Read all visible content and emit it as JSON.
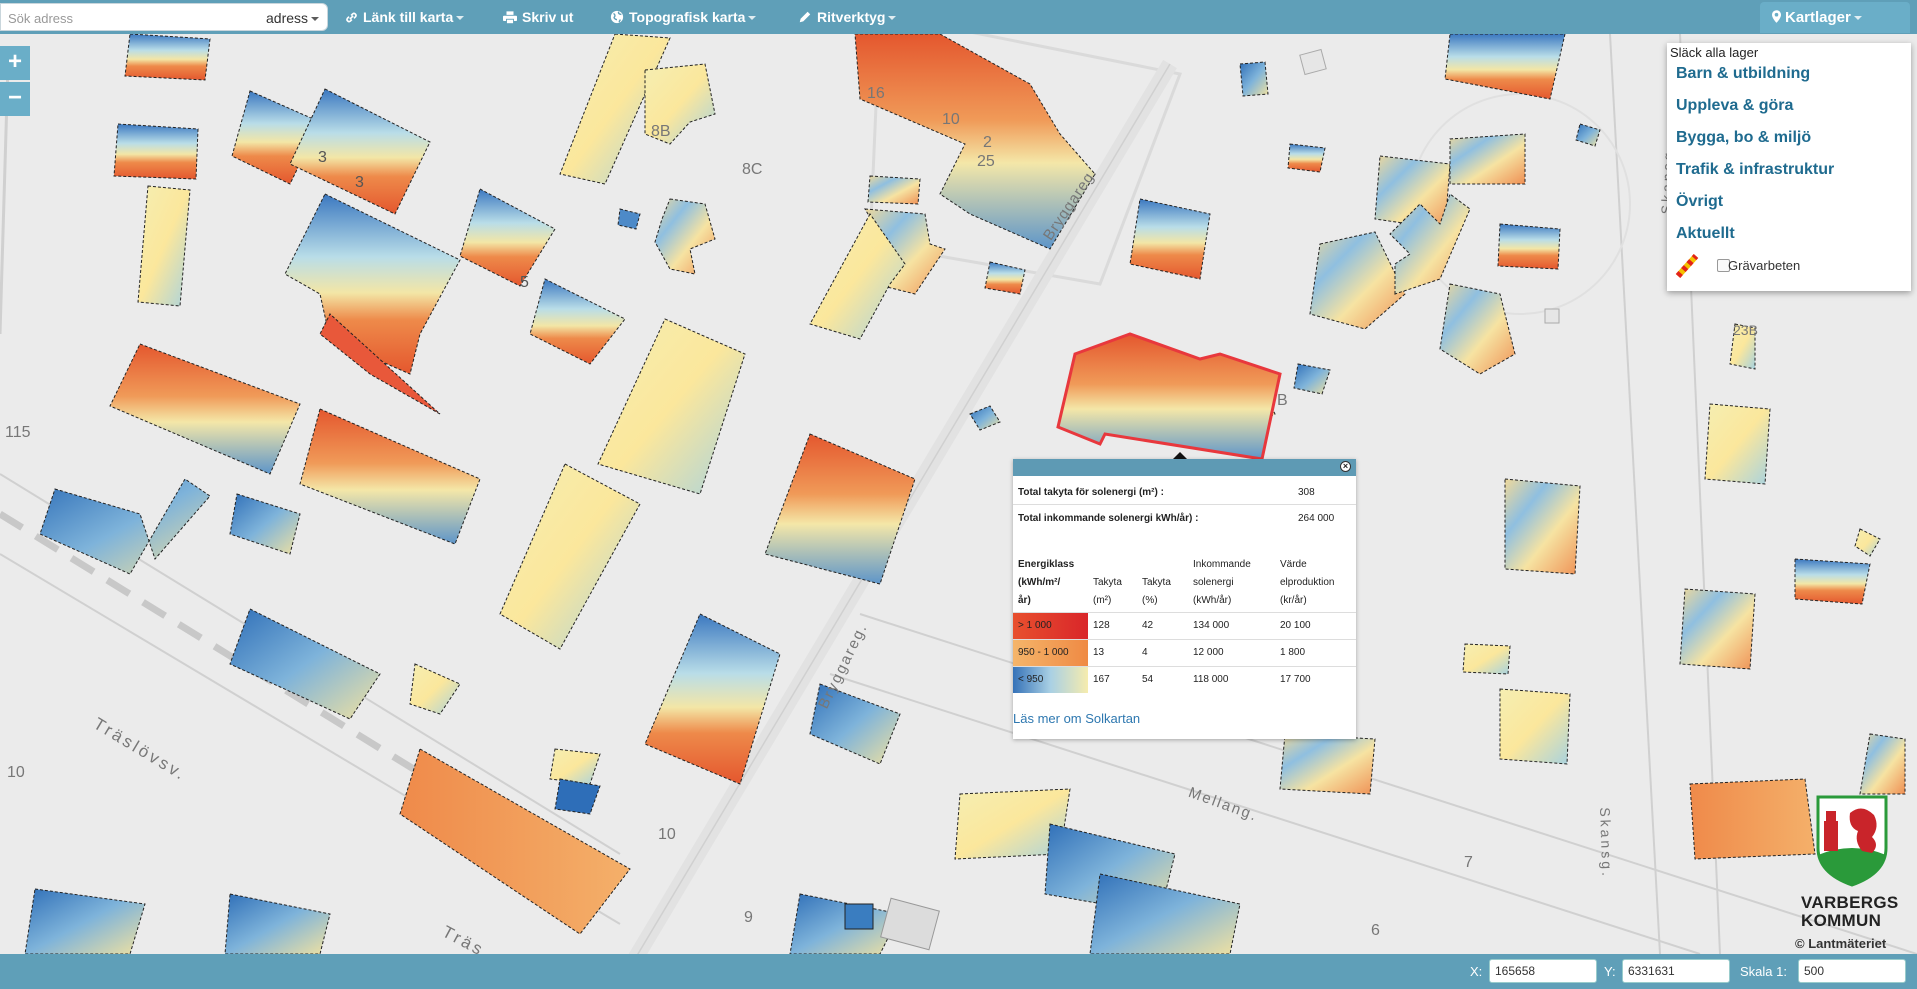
{
  "toolbar": {
    "search_placeholder": "Sök adress",
    "search_type": "adress",
    "link_label": "Länk till karta",
    "print_label": "Skriv ut",
    "basemap_label": "Topografisk karta",
    "draw_label": "Ritverktyg",
    "layers_label": "Kartlager"
  },
  "zoom": {
    "in_label": "+",
    "out_label": "−"
  },
  "layer_panel": {
    "toggle_all": "Släck alla lager",
    "categories": [
      "Barn & utbildning",
      "Uppleva & göra",
      "Bygga, bo & miljö",
      "Trafik & infrastruktur",
      "Övrigt",
      "Aktuellt"
    ],
    "layer_item": "Grävarbeten"
  },
  "popup": {
    "total_area_label": "Total takyta för solenergi (m²) :",
    "total_area_value": "308",
    "total_energy_label": "Total inkommande solenergi kWh/år) :",
    "total_energy_value": "264 000",
    "headers": {
      "energy_class": [
        "Energiklass",
        "(kWh/m²/",
        "år)"
      ],
      "area_m2": [
        "Takyta",
        "(m²)"
      ],
      "area_pct": [
        "Takyta",
        "(%)"
      ],
      "incoming": [
        "Inkommande",
        "solenergi",
        "(kWh/år)"
      ],
      "value": [
        "Värde",
        "elproduktion",
        "(kr/år)"
      ]
    },
    "rows": [
      {
        "class": "> 1 000",
        "area": "128",
        "pct": "42",
        "energy": "134 000",
        "value": "20 100",
        "color": "#d9262a"
      },
      {
        "class": "950 - 1 000",
        "area": "13",
        "pct": "4",
        "energy": "12 000",
        "value": "1 800",
        "color": "#f39a52"
      },
      {
        "class": "< 950",
        "area": "167",
        "pct": "54",
        "energy": "118 000",
        "value": "17 700",
        "color": "#6fa8d6"
      }
    ],
    "read_more": "Läs mer om Solkartan"
  },
  "map_labels": {
    "l1": "16",
    "l2": "10",
    "l3": "8B",
    "l4": "8C",
    "l5": "Bryggareg.",
    "l6": "115",
    "l7": "Träslövsv.",
    "l8": "10",
    "l9": "10",
    "l10": "9",
    "l11": "Bryggareg.",
    "l12": "Mellang.",
    "l13": "7",
    "l14": "6",
    "l15": "Skansg.",
    "l16": "Skansg.",
    "l17": "23B",
    "l18": "B",
    "l19": "5",
    "l20": "2",
    "l21": "25",
    "l22": "3",
    "l23": "3",
    "l24": "Träs"
  },
  "bottombar": {
    "x_label": "X:",
    "x_value": "165658",
    "y_label": "Y:",
    "y_value": "6331631",
    "scale_label": "Skala 1:",
    "scale_value": "500"
  },
  "branding": {
    "name1": "VARBERGS",
    "name2": "KOMMUN",
    "copyright": "© Lantmäteriet"
  },
  "colors": {
    "toolbar": "#5f9fb8",
    "accent": "#1f6b8f",
    "highlight": "#e8383d"
  }
}
